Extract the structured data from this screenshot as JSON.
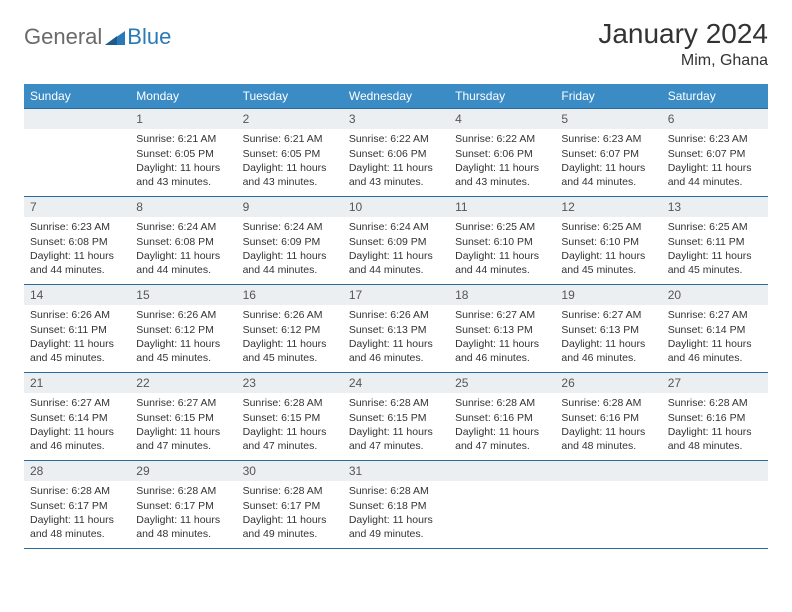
{
  "brand": {
    "text1": "General",
    "text2": "Blue"
  },
  "title": "January 2024",
  "location": "Mim, Ghana",
  "colors": {
    "header_bg": "#3b8bc5",
    "header_text": "#ffffff",
    "daynum_bg": "#eceff1",
    "border": "#2a6a9a",
    "logo_gray": "#6a6a6a",
    "logo_blue": "#2a7ab8"
  },
  "typography": {
    "title_fontsize": 28,
    "location_fontsize": 16,
    "body_fontsize": 10.5,
    "header_fontsize": 12
  },
  "weekdays": [
    "Sunday",
    "Monday",
    "Tuesday",
    "Wednesday",
    "Thursday",
    "Friday",
    "Saturday"
  ],
  "weeks": [
    [
      null,
      {
        "day": "1",
        "sunrise": "Sunrise: 6:21 AM",
        "sunset": "Sunset: 6:05 PM",
        "daylight": "Daylight: 11 hours and 43 minutes."
      },
      {
        "day": "2",
        "sunrise": "Sunrise: 6:21 AM",
        "sunset": "Sunset: 6:05 PM",
        "daylight": "Daylight: 11 hours and 43 minutes."
      },
      {
        "day": "3",
        "sunrise": "Sunrise: 6:22 AM",
        "sunset": "Sunset: 6:06 PM",
        "daylight": "Daylight: 11 hours and 43 minutes."
      },
      {
        "day": "4",
        "sunrise": "Sunrise: 6:22 AM",
        "sunset": "Sunset: 6:06 PM",
        "daylight": "Daylight: 11 hours and 43 minutes."
      },
      {
        "day": "5",
        "sunrise": "Sunrise: 6:23 AM",
        "sunset": "Sunset: 6:07 PM",
        "daylight": "Daylight: 11 hours and 44 minutes."
      },
      {
        "day": "6",
        "sunrise": "Sunrise: 6:23 AM",
        "sunset": "Sunset: 6:07 PM",
        "daylight": "Daylight: 11 hours and 44 minutes."
      }
    ],
    [
      {
        "day": "7",
        "sunrise": "Sunrise: 6:23 AM",
        "sunset": "Sunset: 6:08 PM",
        "daylight": "Daylight: 11 hours and 44 minutes."
      },
      {
        "day": "8",
        "sunrise": "Sunrise: 6:24 AM",
        "sunset": "Sunset: 6:08 PM",
        "daylight": "Daylight: 11 hours and 44 minutes."
      },
      {
        "day": "9",
        "sunrise": "Sunrise: 6:24 AM",
        "sunset": "Sunset: 6:09 PM",
        "daylight": "Daylight: 11 hours and 44 minutes."
      },
      {
        "day": "10",
        "sunrise": "Sunrise: 6:24 AM",
        "sunset": "Sunset: 6:09 PM",
        "daylight": "Daylight: 11 hours and 44 minutes."
      },
      {
        "day": "11",
        "sunrise": "Sunrise: 6:25 AM",
        "sunset": "Sunset: 6:10 PM",
        "daylight": "Daylight: 11 hours and 44 minutes."
      },
      {
        "day": "12",
        "sunrise": "Sunrise: 6:25 AM",
        "sunset": "Sunset: 6:10 PM",
        "daylight": "Daylight: 11 hours and 45 minutes."
      },
      {
        "day": "13",
        "sunrise": "Sunrise: 6:25 AM",
        "sunset": "Sunset: 6:11 PM",
        "daylight": "Daylight: 11 hours and 45 minutes."
      }
    ],
    [
      {
        "day": "14",
        "sunrise": "Sunrise: 6:26 AM",
        "sunset": "Sunset: 6:11 PM",
        "daylight": "Daylight: 11 hours and 45 minutes."
      },
      {
        "day": "15",
        "sunrise": "Sunrise: 6:26 AM",
        "sunset": "Sunset: 6:12 PM",
        "daylight": "Daylight: 11 hours and 45 minutes."
      },
      {
        "day": "16",
        "sunrise": "Sunrise: 6:26 AM",
        "sunset": "Sunset: 6:12 PM",
        "daylight": "Daylight: 11 hours and 45 minutes."
      },
      {
        "day": "17",
        "sunrise": "Sunrise: 6:26 AM",
        "sunset": "Sunset: 6:13 PM",
        "daylight": "Daylight: 11 hours and 46 minutes."
      },
      {
        "day": "18",
        "sunrise": "Sunrise: 6:27 AM",
        "sunset": "Sunset: 6:13 PM",
        "daylight": "Daylight: 11 hours and 46 minutes."
      },
      {
        "day": "19",
        "sunrise": "Sunrise: 6:27 AM",
        "sunset": "Sunset: 6:13 PM",
        "daylight": "Daylight: 11 hours and 46 minutes."
      },
      {
        "day": "20",
        "sunrise": "Sunrise: 6:27 AM",
        "sunset": "Sunset: 6:14 PM",
        "daylight": "Daylight: 11 hours and 46 minutes."
      }
    ],
    [
      {
        "day": "21",
        "sunrise": "Sunrise: 6:27 AM",
        "sunset": "Sunset: 6:14 PM",
        "daylight": "Daylight: 11 hours and 46 minutes."
      },
      {
        "day": "22",
        "sunrise": "Sunrise: 6:27 AM",
        "sunset": "Sunset: 6:15 PM",
        "daylight": "Daylight: 11 hours and 47 minutes."
      },
      {
        "day": "23",
        "sunrise": "Sunrise: 6:28 AM",
        "sunset": "Sunset: 6:15 PM",
        "daylight": "Daylight: 11 hours and 47 minutes."
      },
      {
        "day": "24",
        "sunrise": "Sunrise: 6:28 AM",
        "sunset": "Sunset: 6:15 PM",
        "daylight": "Daylight: 11 hours and 47 minutes."
      },
      {
        "day": "25",
        "sunrise": "Sunrise: 6:28 AM",
        "sunset": "Sunset: 6:16 PM",
        "daylight": "Daylight: 11 hours and 47 minutes."
      },
      {
        "day": "26",
        "sunrise": "Sunrise: 6:28 AM",
        "sunset": "Sunset: 6:16 PM",
        "daylight": "Daylight: 11 hours and 48 minutes."
      },
      {
        "day": "27",
        "sunrise": "Sunrise: 6:28 AM",
        "sunset": "Sunset: 6:16 PM",
        "daylight": "Daylight: 11 hours and 48 minutes."
      }
    ],
    [
      {
        "day": "28",
        "sunrise": "Sunrise: 6:28 AM",
        "sunset": "Sunset: 6:17 PM",
        "daylight": "Daylight: 11 hours and 48 minutes."
      },
      {
        "day": "29",
        "sunrise": "Sunrise: 6:28 AM",
        "sunset": "Sunset: 6:17 PM",
        "daylight": "Daylight: 11 hours and 48 minutes."
      },
      {
        "day": "30",
        "sunrise": "Sunrise: 6:28 AM",
        "sunset": "Sunset: 6:17 PM",
        "daylight": "Daylight: 11 hours and 49 minutes."
      },
      {
        "day": "31",
        "sunrise": "Sunrise: 6:28 AM",
        "sunset": "Sunset: 6:18 PM",
        "daylight": "Daylight: 11 hours and 49 minutes."
      },
      null,
      null,
      null
    ]
  ]
}
